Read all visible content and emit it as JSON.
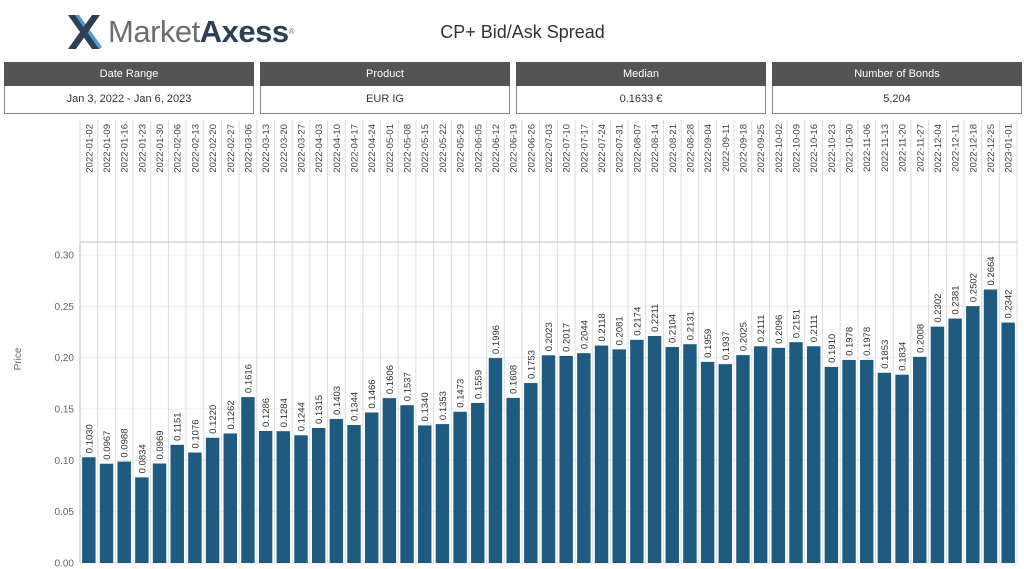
{
  "header": {
    "logo_light": "Market",
    "logo_bold": "Axess",
    "logo_mark": "®",
    "title": "CP+ Bid/Ask Spread"
  },
  "kpis": [
    {
      "label": "Date Range",
      "value": "Jan 3, 2022 - Jan 6, 2023"
    },
    {
      "label": "Product",
      "value": "EUR IG"
    },
    {
      "label": "Median",
      "value": "0.1633 €"
    },
    {
      "label": "Number of Bonds",
      "value": "5,204"
    }
  ],
  "colors": {
    "bar": "#1f5a80",
    "logo_blue": "#2d3f55",
    "logo_grey": "#6a6f75",
    "kpi_header": "#545454"
  },
  "chart_data": {
    "type": "bar",
    "title": "",
    "xlabel": "",
    "ylabel": "Price",
    "ylim": [
      0,
      0.3
    ],
    "yticks": [
      "0.00",
      "0.05",
      "0.10",
      "0.15",
      "0.20",
      "0.25",
      "0.30"
    ],
    "grid": true,
    "categories": [
      "2022-01-02",
      "2022-01-09",
      "2022-01-16",
      "2022-01-23",
      "2022-01-30",
      "2022-02-06",
      "2022-02-13",
      "2022-02-20",
      "2022-02-27",
      "2022-03-06",
      "2022-03-13",
      "2022-03-20",
      "2022-03-27",
      "2022-04-03",
      "2022-04-10",
      "2022-04-17",
      "2022-04-24",
      "2022-05-01",
      "2022-05-08",
      "2022-05-15",
      "2022-05-22",
      "2022-05-29",
      "2022-06-05",
      "2022-06-12",
      "2022-06-19",
      "2022-06-26",
      "2022-07-03",
      "2022-07-10",
      "2022-07-17",
      "2022-07-24",
      "2022-07-31",
      "2022-08-07",
      "2022-08-14",
      "2022-08-21",
      "2022-08-28",
      "2022-09-04",
      "2022-09-11",
      "2022-09-18",
      "2022-09-25",
      "2022-10-02",
      "2022-10-09",
      "2022-10-16",
      "2022-10-23",
      "2022-10-30",
      "2022-11-06",
      "2022-11-13",
      "2022-11-20",
      "2022-11-27",
      "2022-12-04",
      "2022-12-11",
      "2022-12-18",
      "2022-12-25",
      "2023-01-01"
    ],
    "values": [
      0.103,
      0.0967,
      0.0988,
      0.0834,
      0.0969,
      0.1151,
      0.1076,
      0.122,
      0.1262,
      0.1616,
      0.1286,
      0.1284,
      0.1244,
      0.1315,
      0.1403,
      0.1344,
      0.1466,
      0.1606,
      0.1537,
      0.134,
      0.1353,
      0.1473,
      0.1559,
      0.1996,
      0.1608,
      0.1753,
      0.2023,
      0.2017,
      0.2044,
      0.2118,
      0.2081,
      0.2174,
      0.2211,
      0.2104,
      0.2131,
      0.1959,
      0.1937,
      0.2025,
      0.2111,
      0.2096,
      0.2151,
      0.2111,
      0.191,
      0.1978,
      0.1978,
      0.1853,
      0.1834,
      0.2008,
      0.2302,
      0.2381,
      0.2502,
      0.2664,
      0.2342
    ],
    "labels": [
      "0.1030",
      "0.0967",
      "0.0988",
      "0.0834",
      "0.0969",
      "0.1151",
      "0.1076",
      "0.1220",
      "0.1262",
      "0.1616",
      "0.1286",
      "0.1284",
      "0.1244",
      "0.1315",
      "0.1403",
      "0.1344",
      "0.1466",
      "0.1606",
      "0.1537",
      "0.1340",
      "0.1353",
      "0.1473",
      "0.1559",
      "0.1996",
      "0.1608",
      "0.1753",
      "0.2023",
      "0.2017",
      "0.2044",
      "0.2118",
      "0.2081",
      "0.2174",
      "0.2211",
      "0.2104",
      "0.2131",
      "0.1959",
      "0.1937",
      "0.2025",
      "0.2111",
      "0.2096",
      "0.2151",
      "0.2111",
      "0.1910",
      "0.1978",
      "0.1978",
      "0.1853",
      "0.1834",
      "0.2008",
      "0.2302",
      "0.2381",
      "0.2502",
      "0.2664",
      "0.2342"
    ]
  }
}
